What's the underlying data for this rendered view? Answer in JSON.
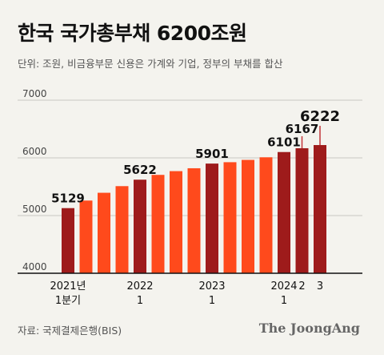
{
  "colors": {
    "highlight_bar": "#9e1b1b",
    "regular_bar": "#ff4a1c",
    "grid": "#c9c7c1",
    "axis": "#111111",
    "marker": "#c2353a"
  },
  "header": {
    "title": "한국 국가총부채 6200조원",
    "subtitle": "단위: 조원, 비금융부문 신용은 가계와 기업, 정부의 부채를 합산"
  },
  "footer": {
    "source": "자료: 국제결제은행(BIS)",
    "brand": "The JoongAng"
  },
  "chart_data": {
    "type": "bar",
    "title": "한국 국가총부채 6200조원",
    "subtitle": "단위: 조원, 비금융부문 신용은 가계와 기업, 정부의 부채를 합산",
    "ylim": [
      4000,
      7000
    ],
    "yticks": [
      "4000",
      "5000",
      "6000",
      "7000"
    ],
    "grid": true,
    "values": [
      5129,
      5260,
      5395,
      5510,
      5622,
      5705,
      5770,
      5820,
      5901,
      5925,
      5965,
      6010,
      6101,
      6167,
      6222
    ],
    "highlighted": [
      true,
      false,
      false,
      false,
      true,
      false,
      false,
      false,
      true,
      false,
      false,
      false,
      true,
      true,
      true
    ],
    "value_labels": [
      {
        "index": 0,
        "text": "5129"
      },
      {
        "index": 4,
        "text": "5622"
      },
      {
        "index": 8,
        "text": "5901"
      },
      {
        "index": 12,
        "text": "6101"
      },
      {
        "index": 13,
        "text": "6167"
      },
      {
        "index": 14,
        "text": "6222"
      }
    ],
    "x_labels": [
      {
        "index": 0,
        "lines": [
          "2021년",
          "1분기"
        ]
      },
      {
        "index": 4,
        "lines": [
          "2022",
          "1"
        ]
      },
      {
        "index": 8,
        "lines": [
          "2023",
          "1"
        ]
      },
      {
        "index": 12,
        "lines": [
          "2024",
          "1"
        ]
      },
      {
        "index": 13,
        "lines": [
          "2"
        ]
      },
      {
        "index": 14,
        "lines": [
          "3"
        ]
      }
    ]
  }
}
